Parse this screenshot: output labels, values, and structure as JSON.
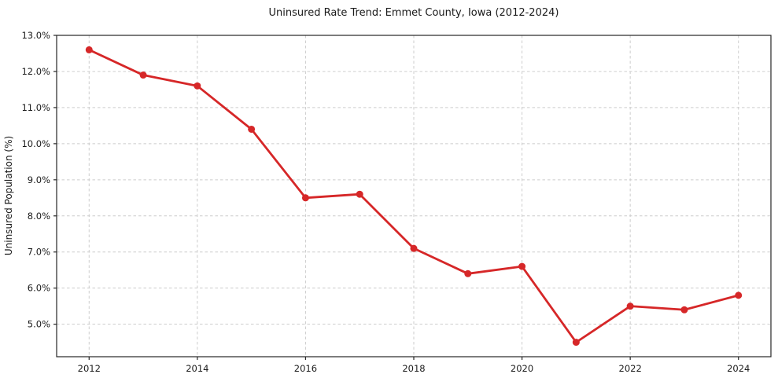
{
  "chart_data": {
    "type": "line",
    "title": "Uninsured Rate Trend: Emmet County, Iowa (2012-2024)",
    "xlabel": "",
    "ylabel": "Uninsured Population (%)",
    "x": [
      2012,
      2013,
      2014,
      2015,
      2016,
      2017,
      2018,
      2019,
      2020,
      2021,
      2022,
      2023,
      2024
    ],
    "values": [
      12.6,
      11.9,
      11.6,
      10.4,
      8.5,
      8.6,
      7.1,
      6.4,
      6.6,
      4.5,
      5.5,
      5.4,
      5.8
    ],
    "series_name": "uninsured-rate",
    "x_ticks": [
      2012,
      2014,
      2016,
      2018,
      2020,
      2022,
      2024
    ],
    "x_tick_labels": [
      "2012",
      "2014",
      "2016",
      "2018",
      "2020",
      "2022",
      "2024"
    ],
    "y_ticks": [
      5.0,
      6.0,
      7.0,
      8.0,
      9.0,
      10.0,
      11.0,
      12.0,
      13.0
    ],
    "y_tick_labels": [
      "5.0%",
      "6.0%",
      "7.0%",
      "8.0%",
      "9.0%",
      "10.0%",
      "11.0%",
      "12.0%",
      "13.0%"
    ],
    "xlim": [
      2011.4,
      2024.6
    ],
    "ylim": [
      4.1,
      13.0
    ],
    "grid": true,
    "grid_style": "dashed",
    "legend": false,
    "colors": {
      "line": "#d62728",
      "marker": "#d62728",
      "grid": "#cccccc",
      "spine": "#262626",
      "text": "#1a1a1a",
      "background": "#ffffff"
    }
  }
}
